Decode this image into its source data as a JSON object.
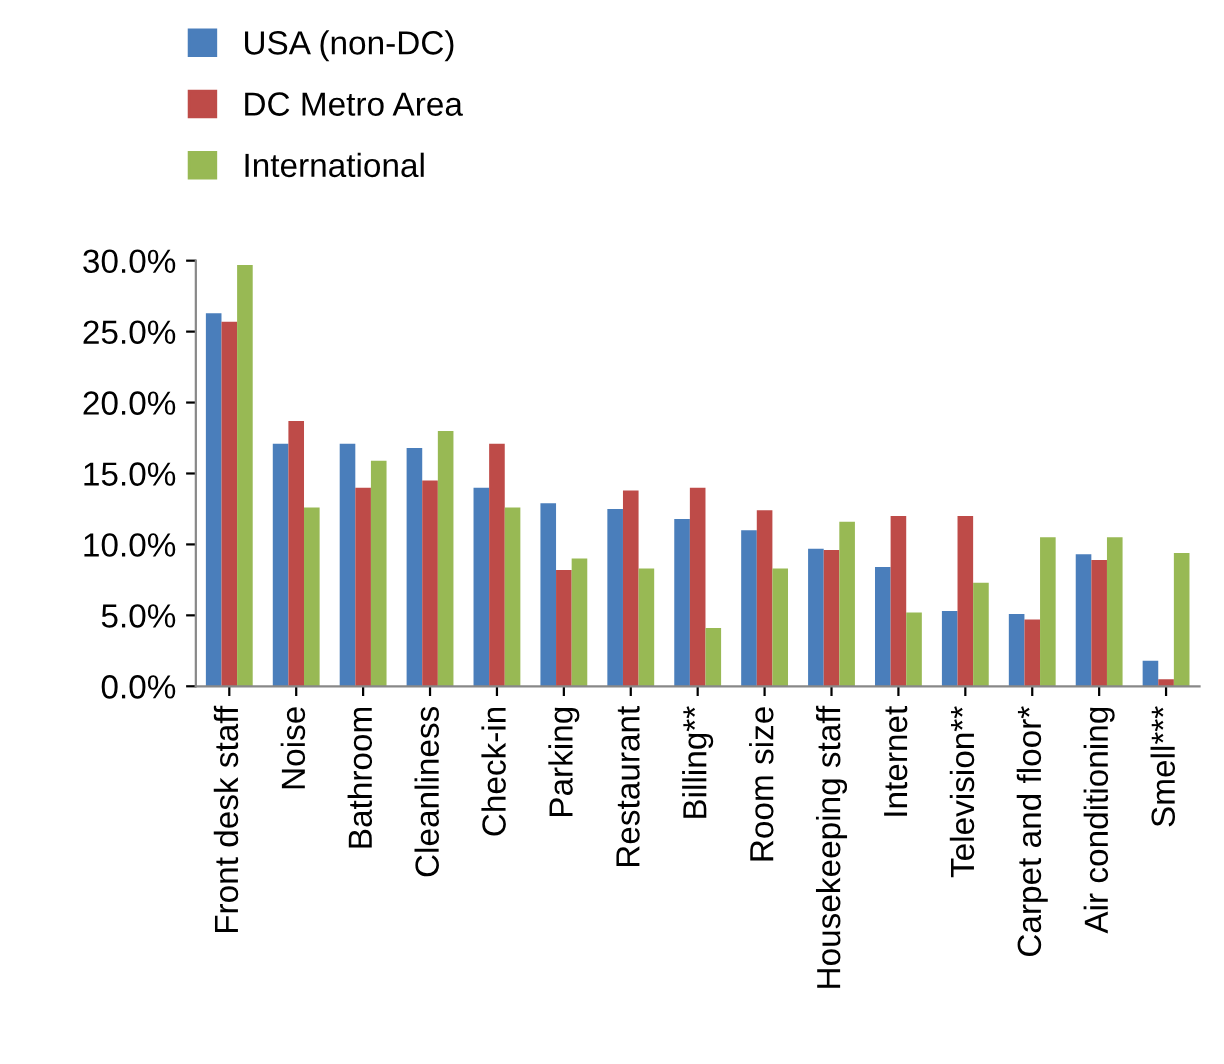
{
  "chart_data": {
    "type": "bar",
    "categories": [
      "Front desk staff",
      "Noise",
      "Bathroom",
      "Cleanliness",
      "Check-in",
      "Parking",
      "Restaurant",
      "Billing**",
      "Room size",
      "Housekeeping staff",
      "Internet",
      "Television**",
      "Carpet and floor*",
      "Air conditioning",
      "Smell***"
    ],
    "series": [
      {
        "name": "USA (non-DC)",
        "color": "#4a7ebb",
        "values": [
          26.3,
          17.1,
          17.1,
          16.8,
          14.0,
          12.9,
          12.5,
          11.8,
          11.0,
          9.7,
          8.4,
          5.3,
          5.1,
          9.3,
          1.8
        ]
      },
      {
        "name": "DC Metro Area",
        "color": "#be4b48",
        "values": [
          25.7,
          18.7,
          14.0,
          14.5,
          17.1,
          8.2,
          13.8,
          14.0,
          12.4,
          9.6,
          12.0,
          12.0,
          4.7,
          8.9,
          0.5
        ]
      },
      {
        "name": "International",
        "color": "#98b954",
        "values": [
          29.7,
          12.6,
          15.9,
          18.0,
          12.6,
          9.0,
          8.3,
          4.1,
          8.3,
          11.6,
          5.2,
          7.3,
          10.5,
          10.5,
          9.4
        ]
      }
    ],
    "ylim": [
      0,
      30
    ],
    "yticks": [
      {
        "value": 0,
        "label": "0.0%"
      },
      {
        "value": 5,
        "label": "5.0%"
      },
      {
        "value": 10,
        "label": "10.0%"
      },
      {
        "value": 15,
        "label": "15.0%"
      },
      {
        "value": 20,
        "label": "20.0%"
      },
      {
        "value": 25,
        "label": "25.0%"
      },
      {
        "value": 30,
        "label": "30.0%"
      }
    ],
    "grid": false,
    "legend": "top left"
  }
}
